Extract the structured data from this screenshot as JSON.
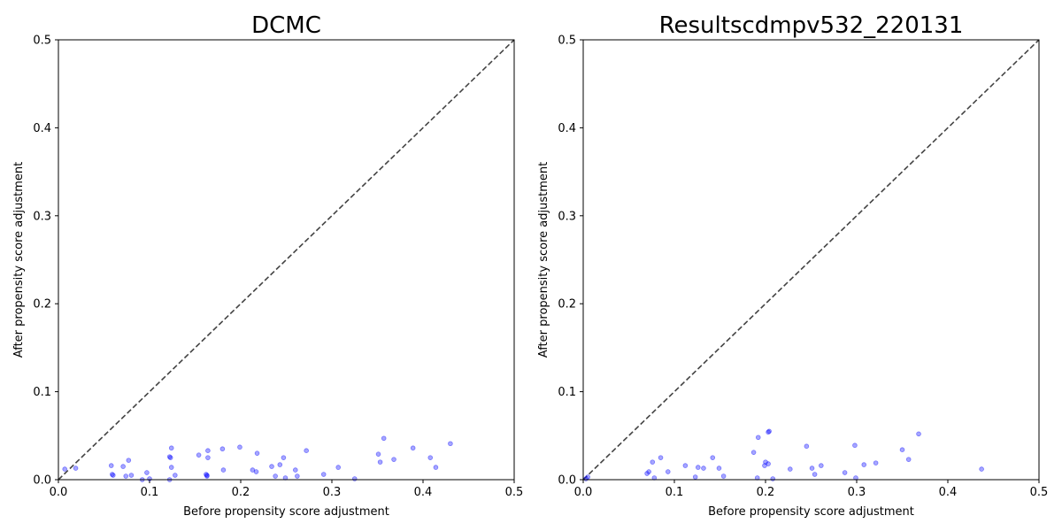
{
  "chart_data": [
    {
      "type": "scatter",
      "title": "DCMC",
      "xlabel": "Before propensity score adjustment",
      "ylabel": "After propensity score adjustment",
      "xlim": [
        0,
        0.5
      ],
      "ylim": [
        0,
        0.5
      ],
      "xticks": [
        "0.0",
        "0.1",
        "0.2",
        "0.3",
        "0.4",
        "0.5"
      ],
      "yticks": [
        "0.0",
        "0.1",
        "0.2",
        "0.3",
        "0.4",
        "0.5"
      ],
      "grid": false,
      "reference_line": {
        "from": [
          0,
          0
        ],
        "to": [
          0.5,
          0.5
        ],
        "style": "dashed",
        "color": "#444444"
      },
      "point_color": "#0000ff",
      "points": [
        [
          0.007,
          0.012
        ],
        [
          0.019,
          0.013
        ],
        [
          0.058,
          0.016
        ],
        [
          0.059,
          0.006
        ],
        [
          0.06,
          0.005
        ],
        [
          0.071,
          0.015
        ],
        [
          0.074,
          0.004
        ],
        [
          0.077,
          0.022
        ],
        [
          0.08,
          0.005
        ],
        [
          0.092,
          0.0
        ],
        [
          0.097,
          0.008
        ],
        [
          0.1,
          0.001
        ],
        [
          0.122,
          0.0
        ],
        [
          0.122,
          0.026
        ],
        [
          0.123,
          0.025
        ],
        [
          0.124,
          0.014
        ],
        [
          0.124,
          0.036
        ],
        [
          0.128,
          0.005
        ],
        [
          0.154,
          0.028
        ],
        [
          0.162,
          0.006
        ],
        [
          0.163,
          0.005
        ],
        [
          0.163,
          0.004
        ],
        [
          0.164,
          0.033
        ],
        [
          0.164,
          0.025
        ],
        [
          0.18,
          0.035
        ],
        [
          0.181,
          0.011
        ],
        [
          0.199,
          0.037
        ],
        [
          0.213,
          0.011
        ],
        [
          0.217,
          0.009
        ],
        [
          0.218,
          0.03
        ],
        [
          0.234,
          0.015
        ],
        [
          0.238,
          0.004
        ],
        [
          0.243,
          0.017
        ],
        [
          0.247,
          0.025
        ],
        [
          0.249,
          0.002
        ],
        [
          0.26,
          0.011
        ],
        [
          0.262,
          0.004
        ],
        [
          0.272,
          0.033
        ],
        [
          0.291,
          0.006
        ],
        [
          0.307,
          0.014
        ],
        [
          0.325,
          0.001
        ],
        [
          0.351,
          0.029
        ],
        [
          0.353,
          0.02
        ],
        [
          0.357,
          0.047
        ],
        [
          0.368,
          0.023
        ],
        [
          0.389,
          0.036
        ],
        [
          0.408,
          0.025
        ],
        [
          0.414,
          0.014
        ],
        [
          0.43,
          0.041
        ]
      ]
    },
    {
      "type": "scatter",
      "title": "Resultscdmpv532_220131",
      "xlabel": "Before propensity score adjustment",
      "ylabel": "After propensity score adjustment",
      "xlim": [
        0,
        0.5
      ],
      "ylim": [
        0,
        0.5
      ],
      "xticks": [
        "0.0",
        "0.1",
        "0.2",
        "0.3",
        "0.4",
        "0.5"
      ],
      "yticks": [
        "0.0",
        "0.1",
        "0.2",
        "0.3",
        "0.4",
        "0.5"
      ],
      "grid": false,
      "reference_line": {
        "from": [
          0,
          0
        ],
        "to": [
          0.5,
          0.5
        ],
        "style": "dashed",
        "color": "#444444"
      },
      "point_color": "#0000ff",
      "points": [
        [
          0.003,
          0.001
        ],
        [
          0.005,
          0.003
        ],
        [
          0.07,
          0.007
        ],
        [
          0.072,
          0.009
        ],
        [
          0.076,
          0.02
        ],
        [
          0.078,
          0.002
        ],
        [
          0.085,
          0.025
        ],
        [
          0.093,
          0.009
        ],
        [
          0.112,
          0.016
        ],
        [
          0.123,
          0.003
        ],
        [
          0.126,
          0.014
        ],
        [
          0.132,
          0.013
        ],
        [
          0.142,
          0.025
        ],
        [
          0.149,
          0.013
        ],
        [
          0.154,
          0.004
        ],
        [
          0.187,
          0.031
        ],
        [
          0.191,
          0.002
        ],
        [
          0.192,
          0.048
        ],
        [
          0.199,
          0.016
        ],
        [
          0.2,
          0.02
        ],
        [
          0.203,
          0.018
        ],
        [
          0.203,
          0.054
        ],
        [
          0.204,
          0.055
        ],
        [
          0.208,
          0.001
        ],
        [
          0.227,
          0.012
        ],
        [
          0.245,
          0.038
        ],
        [
          0.251,
          0.013
        ],
        [
          0.254,
          0.006
        ],
        [
          0.261,
          0.016
        ],
        [
          0.287,
          0.008
        ],
        [
          0.298,
          0.039
        ],
        [
          0.299,
          0.002
        ],
        [
          0.308,
          0.017
        ],
        [
          0.321,
          0.019
        ],
        [
          0.35,
          0.034
        ],
        [
          0.357,
          0.023
        ],
        [
          0.368,
          0.052
        ],
        [
          0.437,
          0.012
        ]
      ]
    }
  ]
}
